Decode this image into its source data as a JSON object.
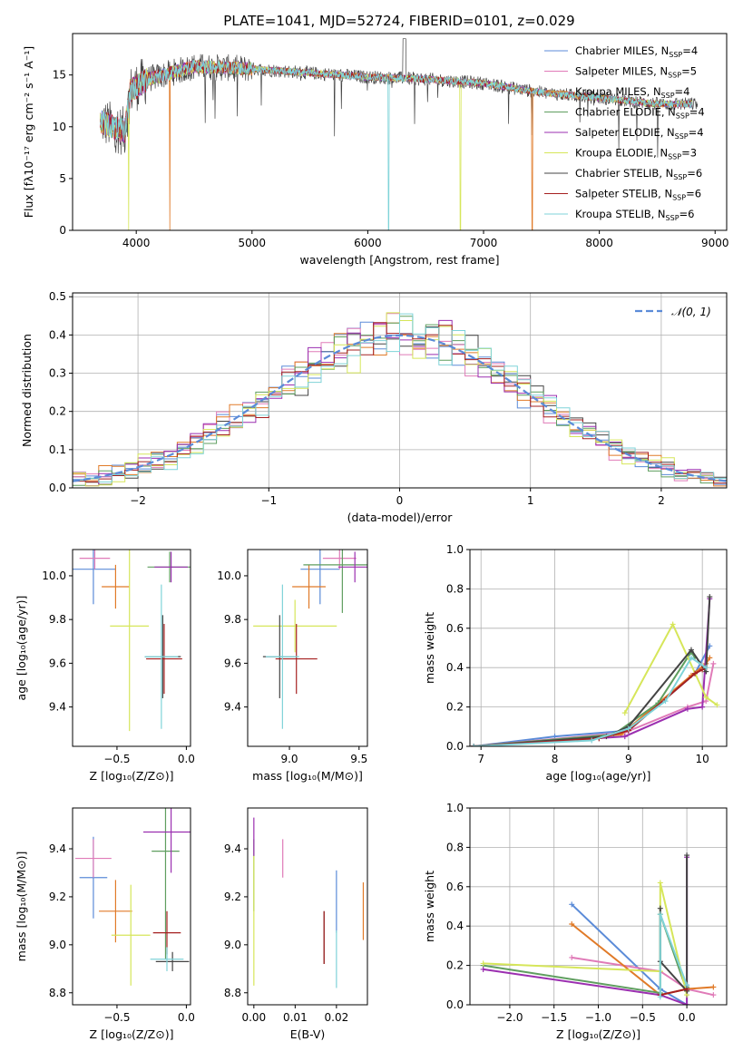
{
  "figure": {
    "title": "PLATE=1041, MJD=52724, FIBERID=0101, z=0.029"
  },
  "models": [
    {
      "label": "Chabrier MILES, N",
      "sub": "SSP",
      "suffix": "=4",
      "color": "#5b8bd8"
    },
    {
      "label": "Salpeter MILES, N",
      "sub": "SSP",
      "suffix": "=5",
      "color": "#e07bb8"
    },
    {
      "label": "Kroupa MILES, N",
      "sub": "SSP",
      "suffix": "=4",
      "color": "#e07a28"
    },
    {
      "label": "Chabrier ELODIE, N",
      "sub": "SSP",
      "suffix": "=4",
      "color": "#5f9e5f"
    },
    {
      "label": "Salpeter ELODIE, N",
      "sub": "SSP",
      "suffix": "=4",
      "color": "#9b2fb0"
    },
    {
      "label": "Kroupa ELODIE, N",
      "sub": "SSP",
      "suffix": "=3",
      "color": "#d6e65a"
    },
    {
      "label": "Chabrier STELIB, N",
      "sub": "SSP",
      "suffix": "=6",
      "color": "#444444"
    },
    {
      "label": "Salpeter STELIB, N",
      "sub": "SSP",
      "suffix": "=6",
      "color": "#a52020"
    },
    {
      "label": "Kroupa STELIB, N",
      "sub": "SSP",
      "suffix": "=6",
      "color": "#7fd3d8"
    }
  ],
  "chart_data": [
    {
      "id": "spectrum",
      "type": "line",
      "xlabel": "wavelength [Angstrom, rest frame]",
      "ylabel": "Flux [fλ10⁻¹⁷ erg cm⁻² s⁻¹ A⁻¹]",
      "xlim": [
        3450,
        9100
      ],
      "ylim": [
        0,
        19
      ],
      "xticks": [
        4000,
        5000,
        6000,
        7000,
        8000,
        9000
      ],
      "yticks": [
        0,
        5,
        10,
        15
      ],
      "continuum": [
        [
          3700,
          10.5
        ],
        [
          3900,
          9.5
        ],
        [
          3950,
          13.5
        ],
        [
          4100,
          14.6
        ],
        [
          4500,
          15.8
        ],
        [
          5000,
          15.6
        ],
        [
          5500,
          15.2
        ],
        [
          6000,
          14.8
        ],
        [
          6500,
          14.6
        ],
        [
          7000,
          14.2
        ],
        [
          7500,
          13.3
        ],
        [
          8000,
          12.8
        ],
        [
          8500,
          12.2
        ],
        [
          8850,
          12.2
        ]
      ],
      "dips": [
        {
          "x": 3935,
          "series": 5,
          "y": 0
        },
        {
          "x": 4290,
          "series": 2,
          "y": 0
        },
        {
          "x": 6180,
          "series": 8,
          "y": 0
        },
        {
          "x": 6800,
          "series": 5,
          "y": 0
        },
        {
          "x": 7420,
          "series": 2,
          "y": 0
        }
      ],
      "legend_position": "upper-right"
    },
    {
      "id": "residuals",
      "type": "histogram",
      "xlabel": "(data-model)/error",
      "ylabel": "Normed distribution",
      "xlim": [
        -2.5,
        2.5
      ],
      "ylim": [
        0,
        0.51
      ],
      "xticks": [
        -2,
        -1,
        0,
        1,
        2
      ],
      "yticks": [
        0.0,
        0.1,
        0.2,
        0.3,
        0.4,
        0.5
      ],
      "bin_width": 0.1,
      "curve": {
        "label": "𝒩(0, 1)",
        "mean": 0,
        "sigma": 1,
        "color": "#5b8bd8"
      },
      "legend_position": "upper-right"
    },
    {
      "id": "age-vs-z",
      "type": "errorbar",
      "xlabel": "Z [log₁₀(Z/Z⊙)]",
      "ylabel": "age  [log₁₀(age/yr)]",
      "xlim": [
        -0.82,
        0.03
      ],
      "ylim": [
        9.22,
        10.12
      ],
      "xticks": [
        -0.5,
        0.0
      ],
      "yticks": [
        9.4,
        9.6,
        9.8,
        10.0
      ],
      "points": [
        {
          "series": 0,
          "x": -0.67,
          "y": 10.03,
          "xerr": 0.16,
          "yerr": 0.16
        },
        {
          "series": 1,
          "x": -0.66,
          "y": 10.08,
          "xerr": 0.11,
          "yerr": 0.05
        },
        {
          "series": 2,
          "x": -0.51,
          "y": 9.95,
          "xerr": 0.1,
          "yerr": 0.1
        },
        {
          "series": 3,
          "x": -0.12,
          "y": 10.04,
          "xerr": 0.16,
          "yerr": 0.07
        },
        {
          "series": 4,
          "x": -0.11,
          "y": 10.04,
          "xerr": 0.12,
          "yerr": 0.07
        },
        {
          "series": 5,
          "x": -0.41,
          "y": 9.77,
          "xerr": 0.14,
          "yerr": 0.48
        },
        {
          "series": 6,
          "x": -0.17,
          "y": 9.63,
          "xerr": 0.13,
          "yerr": 0.19
        },
        {
          "series": 7,
          "x": -0.16,
          "y": 9.62,
          "xerr": 0.13,
          "yerr": 0.16
        },
        {
          "series": 8,
          "x": -0.18,
          "y": 9.63,
          "xerr": 0.12,
          "yerr": 0.33
        }
      ]
    },
    {
      "id": "age-vs-mass",
      "type": "errorbar",
      "xlabel": "mass [log₁₀(M/M⊙)]",
      "ylabel": "",
      "xlim": [
        8.7,
        9.56
      ],
      "ylim": [
        9.22,
        10.12
      ],
      "xticks": [
        9.0,
        9.5
      ],
      "yticks": [
        9.4,
        9.6,
        9.8,
        10.0
      ],
      "points": [
        {
          "series": 0,
          "x": 9.22,
          "y": 10.03,
          "xerr": 0.14,
          "yerr": 0.16
        },
        {
          "series": 1,
          "x": 9.36,
          "y": 10.08,
          "xerr": 0.12,
          "yerr": 0.05
        },
        {
          "series": 2,
          "x": 9.14,
          "y": 9.95,
          "xerr": 0.12,
          "yerr": 0.1
        },
        {
          "series": 3,
          "x": 9.38,
          "y": 10.05,
          "xerr": 0.28,
          "yerr": 0.22
        },
        {
          "series": 4,
          "x": 9.47,
          "y": 10.04,
          "xerr": 0.12,
          "yerr": 0.07
        },
        {
          "series": 5,
          "x": 9.04,
          "y": 9.77,
          "xerr": 0.3,
          "yerr": 0.12
        },
        {
          "series": 6,
          "x": 8.93,
          "y": 9.63,
          "xerr": 0.12,
          "yerr": 0.19
        },
        {
          "series": 7,
          "x": 9.05,
          "y": 9.62,
          "xerr": 0.15,
          "yerr": 0.16
        },
        {
          "series": 8,
          "x": 8.95,
          "y": 9.63,
          "xerr": 0.12,
          "yerr": 0.33
        }
      ]
    },
    {
      "id": "weight-vs-age",
      "type": "line",
      "xlabel": "age  [log₁₀(age/yr)]",
      "ylabel": "mass weight",
      "xlim": [
        6.85,
        10.33
      ],
      "ylim": [
        0,
        1.0
      ],
      "xticks": [
        7,
        8,
        9,
        10
      ],
      "yticks": [
        0.0,
        0.2,
        0.4,
        0.6,
        0.8,
        1.0
      ],
      "series": [
        {
          "series": 0,
          "points": [
            [
              6.9,
              0.0
            ],
            [
              8.0,
              0.05
            ],
            [
              9.0,
              0.08
            ],
            [
              9.9,
              0.37
            ],
            [
              10.1,
              0.51
            ]
          ]
        },
        {
          "series": 1,
          "points": [
            [
              6.9,
              0.0
            ],
            [
              8.95,
              0.07
            ],
            [
              9.8,
              0.2
            ],
            [
              10.05,
              0.23
            ],
            [
              10.15,
              0.42
            ]
          ]
        },
        {
          "series": 2,
          "points": [
            [
              6.9,
              0.0
            ],
            [
              8.9,
              0.06
            ],
            [
              9.85,
              0.36
            ],
            [
              10.05,
              0.42
            ],
            [
              10.1,
              0.45
            ]
          ]
        },
        {
          "series": 3,
          "points": [
            [
              6.9,
              0.0
            ],
            [
              8.8,
              0.06
            ],
            [
              9.4,
              0.22
            ],
            [
              9.85,
              0.48
            ],
            [
              9.9,
              0.45
            ]
          ]
        },
        {
          "series": 4,
          "points": [
            [
              6.9,
              0.0
            ],
            [
              8.95,
              0.05
            ],
            [
              9.8,
              0.19
            ],
            [
              10.0,
              0.2
            ],
            [
              10.1,
              0.75
            ]
          ]
        },
        {
          "series": 5,
          "points": [
            [
              8.95,
              0.17
            ],
            [
              9.6,
              0.62
            ],
            [
              10.05,
              0.25
            ],
            [
              10.2,
              0.21
            ]
          ]
        },
        {
          "series": 6,
          "points": [
            [
              6.9,
              0.0
            ],
            [
              8.7,
              0.05
            ],
            [
              9.0,
              0.1
            ],
            [
              9.85,
              0.49
            ],
            [
              10.05,
              0.38
            ],
            [
              10.1,
              0.76
            ]
          ]
        },
        {
          "series": 7,
          "points": [
            [
              6.9,
              0.0
            ],
            [
              8.6,
              0.04
            ],
            [
              9.0,
              0.08
            ],
            [
              9.9,
              0.37
            ],
            [
              10.0,
              0.39
            ]
          ]
        },
        {
          "series": 8,
          "points": [
            [
              6.9,
              0.0
            ],
            [
              8.5,
              0.03
            ],
            [
              9.0,
              0.09
            ],
            [
              9.5,
              0.23
            ],
            [
              9.85,
              0.45
            ],
            [
              10.05,
              0.4
            ]
          ]
        }
      ]
    },
    {
      "id": "mass-vs-z",
      "type": "errorbar",
      "xlabel": "Z [log₁₀(Z/Z⊙)]",
      "ylabel": "mass [log₁₀(M/M⊙)]",
      "xlim": [
        -0.82,
        0.03
      ],
      "ylim": [
        8.75,
        9.57
      ],
      "xticks": [
        -0.5,
        0.0
      ],
      "yticks": [
        8.8,
        9.0,
        9.2,
        9.4
      ],
      "points": [
        {
          "series": 0,
          "x": -0.67,
          "y": 9.28,
          "xerr": 0.1,
          "yerr": 0.17
        },
        {
          "series": 1,
          "x": -0.67,
          "y": 9.36,
          "xerr": 0.13,
          "yerr": 0.08
        },
        {
          "series": 2,
          "x": -0.51,
          "y": 9.14,
          "xerr": 0.12,
          "yerr": 0.13
        },
        {
          "series": 3,
          "x": -0.15,
          "y": 9.39,
          "xerr": 0.1,
          "yerr": 0.45
        },
        {
          "series": 4,
          "x": -0.11,
          "y": 9.47,
          "xerr": 0.2,
          "yerr": 0.17
        },
        {
          "series": 5,
          "x": -0.4,
          "y": 9.04,
          "xerr": 0.14,
          "yerr": 0.21
        },
        {
          "series": 6,
          "x": -0.1,
          "y": 8.93,
          "xerr": 0.12,
          "yerr": 0.04
        },
        {
          "series": 7,
          "x": -0.14,
          "y": 9.05,
          "xerr": 0.1,
          "yerr": 0.09
        },
        {
          "series": 8,
          "x": -0.14,
          "y": 8.94,
          "xerr": 0.12,
          "yerr": 0.05
        }
      ]
    },
    {
      "id": "mass-vs-ebv",
      "type": "errorbar",
      "xlabel": "E(B-V)",
      "ylabel": "",
      "xlim": [
        -0.0015,
        0.0275
      ],
      "ylim": [
        8.75,
        9.57
      ],
      "xticks": [
        0.0,
        0.01,
        0.02
      ],
      "yticks": [
        8.8,
        9.0,
        9.2,
        9.4
      ],
      "points": [
        {
          "series": 0,
          "x": 0.02,
          "y": 9.18,
          "xerr": 0.0,
          "yerr": 0.13
        },
        {
          "series": 1,
          "x": 0.007,
          "y": 9.36,
          "xerr": 0.0,
          "yerr": 0.08
        },
        {
          "series": 2,
          "x": 0.0265,
          "y": 9.14,
          "xerr": 0.0,
          "yerr": 0.12
        },
        {
          "series": 3,
          "x": 0.0,
          "y": 9.29,
          "xerr": 0.0,
          "yerr": 0.15
        },
        {
          "series": 4,
          "x": 0.0,
          "y": 9.45,
          "xerr": 0.0,
          "yerr": 0.08
        },
        {
          "series": 5,
          "x": 0.0,
          "y": 9.1,
          "xerr": 0.0,
          "yerr": 0.27
        },
        {
          "series": 6,
          "x": 0.017,
          "y": 9.03,
          "xerr": 0.0,
          "yerr": 0.11
        },
        {
          "series": 7,
          "x": 0.017,
          "y": 9.03,
          "xerr": 0.0,
          "yerr": 0.11
        },
        {
          "series": 8,
          "x": 0.02,
          "y": 8.94,
          "xerr": 0.0,
          "yerr": 0.12
        }
      ]
    },
    {
      "id": "weight-vs-z",
      "type": "line",
      "xlabel": "Z [log₁₀(Z/Z⊙)]",
      "ylabel": "mass weight",
      "xlim": [
        -2.45,
        0.45
      ],
      "ylim": [
        0,
        1.0
      ],
      "xticks": [
        -2.0,
        -1.5,
        -1.0,
        -0.5,
        0.0
      ],
      "yticks": [
        0.0,
        0.2,
        0.4,
        0.6,
        0.8,
        1.0
      ],
      "series": [
        {
          "series": 0,
          "points": [
            [
              -1.3,
              0.51
            ],
            [
              -0.3,
              0.08
            ],
            [
              0.0,
              0.0
            ],
            [
              0.0,
              0.1
            ]
          ]
        },
        {
          "series": 1,
          "points": [
            [
              -1.3,
              0.24
            ],
            [
              -0.3,
              0.17
            ],
            [
              0.0,
              0.08
            ],
            [
              0.3,
              0.05
            ]
          ]
        },
        {
          "series": 2,
          "points": [
            [
              -1.3,
              0.41
            ],
            [
              -0.3,
              0.05
            ],
            [
              0.0,
              0.08
            ],
            [
              0.3,
              0.09
            ]
          ]
        },
        {
          "series": 3,
          "points": [
            [
              -2.3,
              0.2
            ],
            [
              -0.3,
              0.06
            ],
            [
              -0.3,
              0.46
            ],
            [
              0.0,
              0.07
            ],
            [
              0.0,
              0.09
            ]
          ]
        },
        {
          "series": 4,
          "points": [
            [
              -2.3,
              0.18
            ],
            [
              -0.3,
              0.05
            ],
            [
              0.0,
              0.0
            ],
            [
              0.0,
              0.75
            ]
          ]
        },
        {
          "series": 5,
          "points": [
            [
              -2.3,
              0.21
            ],
            [
              -0.3,
              0.17
            ],
            [
              -0.3,
              0.62
            ],
            [
              0.0,
              0.05
            ]
          ]
        },
        {
          "series": 6,
          "points": [
            [
              -0.3,
              0.49
            ],
            [
              -0.3,
              0.22
            ],
            [
              0.0,
              0.07
            ],
            [
              0.0,
              0.76
            ]
          ]
        },
        {
          "series": 7,
          "points": [
            [
              -0.3,
              0.05
            ],
            [
              0.0,
              0.08
            ]
          ]
        },
        {
          "series": 8,
          "points": [
            [
              -0.3,
              0.04
            ],
            [
              -0.3,
              0.46
            ],
            [
              0.0,
              0.1
            ]
          ]
        }
      ]
    }
  ]
}
